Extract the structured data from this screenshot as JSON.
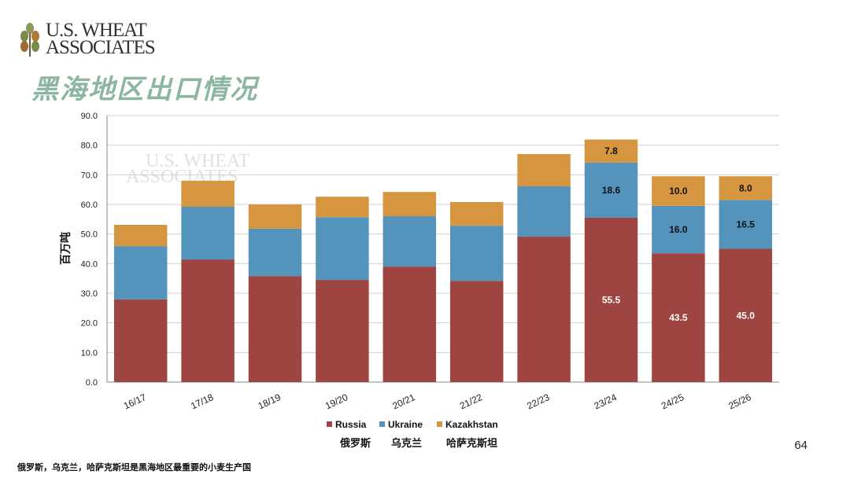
{
  "logo": {
    "line1": "U.S. WHEAT",
    "line2": "ASSOCIATES"
  },
  "title": "黑海地区出口情况",
  "page_number": "64",
  "footnote": "俄罗斯，乌克兰，哈萨克斯坦是黑海地区最重要的小麦生产国",
  "legend_cn": [
    "俄罗斯",
    "乌克兰",
    "哈萨克斯坦"
  ],
  "chart_data": {
    "type": "stacked-bar",
    "ylabel": "百万吨",
    "ylim": [
      0,
      90
    ],
    "yticks": [
      "0.0",
      "10.0",
      "20.0",
      "30.0",
      "40.0",
      "50.0",
      "60.0",
      "70.0",
      "80.0",
      "90.0"
    ],
    "grid": true,
    "legend": "bottom",
    "categories": [
      "16/17",
      "17/18",
      "18/19",
      "19/20",
      "20/21",
      "21/22",
      "22/23",
      "23/24",
      "24/25",
      "25/26"
    ],
    "series": [
      {
        "name": "Russia",
        "color": "#9e4541",
        "values": [
          27.9,
          41.4,
          35.8,
          34.5,
          39.0,
          34.2,
          49.1,
          55.5,
          43.5,
          45.0
        ]
      },
      {
        "name": "Ukraine",
        "color": "#5493bb",
        "values": [
          18.0,
          17.8,
          16.0,
          21.2,
          17.0,
          18.6,
          17.0,
          18.6,
          16.0,
          16.5
        ]
      },
      {
        "name": "Kazakhstan",
        "color": "#d6963f",
        "values": [
          7.2,
          8.8,
          8.2,
          6.9,
          8.2,
          8.0,
          10.9,
          7.8,
          10.0,
          8.0
        ]
      }
    ],
    "data_labels": {
      "7": [
        "55.5",
        "18.6",
        "7.8"
      ],
      "8": [
        "43.5",
        "16.0",
        "10.0"
      ],
      "9": [
        "45.0",
        "16.5",
        "8.0"
      ]
    }
  }
}
